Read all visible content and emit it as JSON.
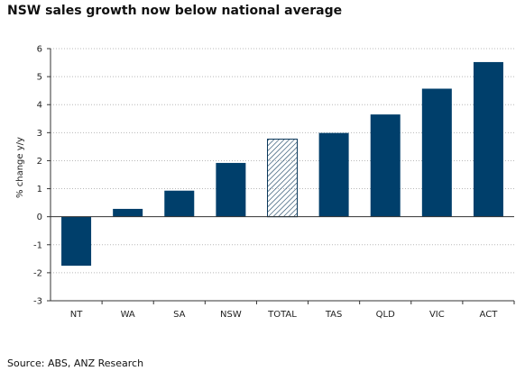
{
  "title": "NSW sales growth now below national average",
  "source": "Source: ABS, ANZ Research",
  "chart_data": {
    "type": "bar",
    "title": "NSW sales growth now below national average",
    "xlabel": "",
    "ylabel": "% change y/y",
    "ylim": [
      -3,
      6
    ],
    "y_ticks": [
      "-3",
      "-2",
      "-1",
      "0",
      "1",
      "2",
      "3",
      "4",
      "5",
      "6"
    ],
    "y_tick_values": [
      -3,
      -2,
      -1,
      0,
      1,
      2,
      3,
      4,
      5,
      6
    ],
    "categories": [
      "NT",
      "WA",
      "SA",
      "NSW",
      "TOTAL",
      "TAS",
      "QLD",
      "VIC",
      "ACT"
    ],
    "values": [
      -1.75,
      0.28,
      0.93,
      1.92,
      2.77,
      2.99,
      3.65,
      4.57,
      5.52
    ],
    "highlight": "TOTAL",
    "grid": true,
    "legend": "none",
    "colors": {
      "bar": "#003f6b",
      "highlight_hatch": "#0d3a5c",
      "grid": "#b8b8b8"
    }
  }
}
